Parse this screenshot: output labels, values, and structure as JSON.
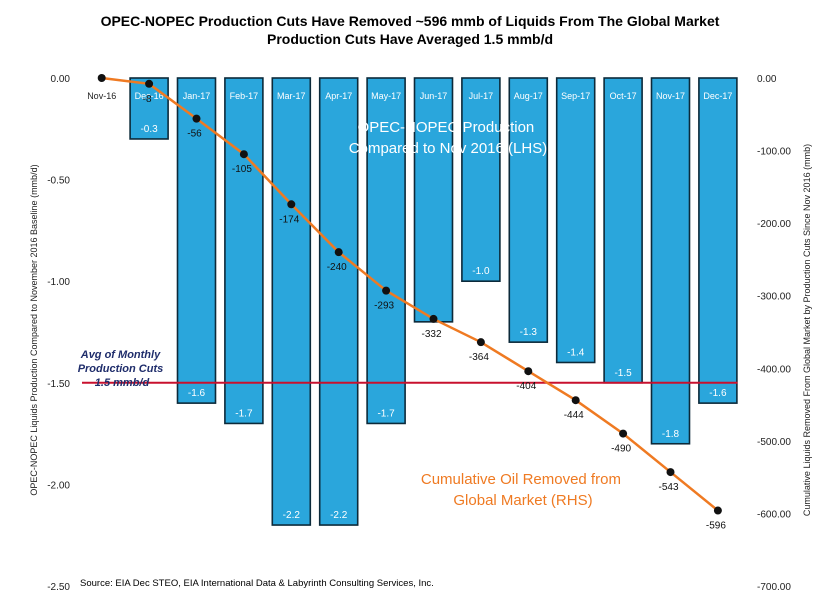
{
  "colors": {
    "bar_fill": "#2aa6dc",
    "bar_stroke": "#0c2a3a",
    "line": "#ef7a22",
    "marker": "#111111",
    "avg_line": "#c8102e",
    "annotation_blue": "#ffffff",
    "annotation_orange": "#ef7a22",
    "avg_text": "#1f2d6b"
  },
  "chart_data": {
    "type": "bar",
    "title": "OPEC-NOPEC  Production Cuts Have Removed ~596 mmb of Liquids From The Global Market",
    "subtitle": "Production Cuts Have Averaged 1.5 mmb/d",
    "ylabel": "OPEC-NOPEC Liquids Production  Compared to November 2016 Baseline (mmb/d)",
    "y2label": "Cumulative Liquids  Removed From Global Market by Production  Cuts Since Nov 2016 (mmb)",
    "categories": [
      "Nov-16",
      "Dec-16",
      "Jan-17",
      "Feb-17",
      "Mar-17",
      "Apr-17",
      "May-17",
      "Jun-17",
      "Jul-17",
      "Aug-17",
      "Sep-17",
      "Oct-17",
      "Nov-17",
      "Dec-17"
    ],
    "ylim": [
      -2.5,
      0
    ],
    "y2lim": [
      -700,
      0
    ],
    "yticks": [
      "0.00",
      "-0.50",
      "-1.00",
      "-1.50",
      "-2.00",
      "-2.50"
    ],
    "y2ticks": [
      "0.00",
      "-100.00",
      "-200.00",
      "-300.00",
      "-400.00",
      "-500.00",
      "-600.00",
      "-700.00"
    ],
    "series": [
      {
        "name": "OPEC-NOPEC Production Compared to Nov 2016 (LHS)",
        "kind": "bar",
        "axis": "left",
        "values": [
          null,
          -0.3,
          -1.6,
          -1.7,
          -2.2,
          -2.2,
          -1.7,
          -1.2,
          -1.0,
          -1.3,
          -1.4,
          -1.5,
          -1.8,
          -1.6
        ],
        "labels": [
          "",
          "-0.3",
          "-1.6",
          "-1.7",
          "-2.2",
          "-2.2",
          "-1.7",
          "",
          "-1.0",
          "-1.3",
          "-1.4",
          "-1.5",
          "-1.8",
          "-1.6"
        ]
      },
      {
        "name": "Cumulative Oil Removed from Global Market (RHS)",
        "kind": "line",
        "axis": "right",
        "values": [
          0,
          -8,
          -56,
          -105,
          -174,
          -240,
          -293,
          -332,
          -364,
          -404,
          -444,
          -490,
          -543,
          -596
        ],
        "labels": [
          "",
          "-8",
          "-56",
          "-105",
          "-174",
          "-240",
          "-293",
          "-332",
          "-364",
          "-404",
          "-444",
          "-490",
          "-543",
          "-596"
        ]
      }
    ],
    "reference_line": {
      "value": -1.5,
      "axis": "left"
    },
    "annotations": {
      "bars": [
        "OPEC-NOPEC Production",
        "Compared to Nov 2016 (LHS)"
      ],
      "line": [
        "Cumulative Oil Removed from",
        "Global Market (RHS)"
      ],
      "avg": [
        "Avg of Monthly",
        "Production Cuts",
        "1.5 mmb/d"
      ]
    },
    "source": "Source:  EIA Dec STEO, EIA International Data & Labyrinth Consulting Services, Inc.",
    "grid": false,
    "legend": "none"
  }
}
